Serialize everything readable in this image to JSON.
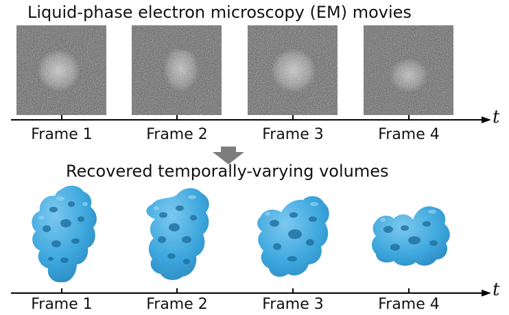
{
  "top_title": "Liquid-phase electron microscopy (EM)  movies",
  "bottom_title": "Recovered  temporally-varying volumes",
  "time_axis_symbol": "t",
  "frame_labels": [
    "Frame 1",
    "Frame 2",
    "Frame 3",
    "Frame 4"
  ],
  "colors": {
    "volume_blue": "#3da7dd",
    "volume_shadow": "#1f6f9e",
    "arrow_gray": "#7d7d7d",
    "axis": "#000000"
  }
}
